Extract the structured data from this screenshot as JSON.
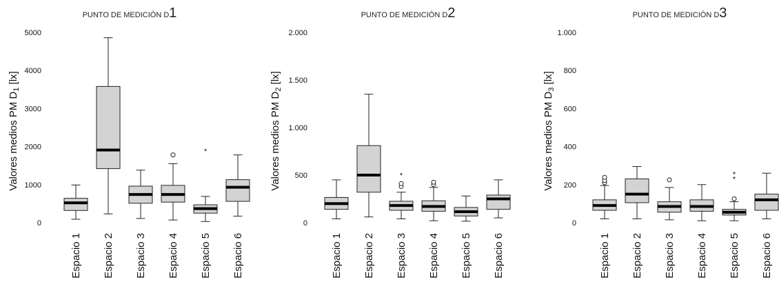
{
  "chart_data": [
    {
      "type": "boxplot",
      "title": "PUNTO DE MEDICIÓN D",
      "title_sub": "1",
      "ylabel": "Valores medios PM D",
      "ylabel_sub": "1",
      "ylabel_unit": " [lx]",
      "ylim": [
        0,
        5000
      ],
      "yticks": [
        0,
        1000,
        2000,
        3000,
        4000,
        5000
      ],
      "ytick_labels": [
        "0",
        "1000",
        "2000",
        "3000",
        "4000",
        "5000"
      ],
      "categories": [
        "Espacio 1",
        "Espacio 2",
        "Espacio 3",
        "Espacio 4",
        "Espacio 5",
        "Espacio 6"
      ],
      "boxes": [
        {
          "whisker_low": 90,
          "q1": 320,
          "median": 520,
          "q3": 640,
          "whisker_high": 990,
          "outliers": []
        },
        {
          "whisker_low": 230,
          "q1": 1420,
          "median": 1910,
          "q3": 3580,
          "whisker_high": 4860,
          "outliers": []
        },
        {
          "whisker_low": 110,
          "q1": 510,
          "median": 740,
          "q3": 960,
          "whisker_high": 1380,
          "outliers": []
        },
        {
          "whisker_low": 70,
          "q1": 540,
          "median": 740,
          "q3": 980,
          "whisker_high": 1550,
          "outliers": [
            {
              "value": 1780,
              "marker": "circle"
            }
          ]
        },
        {
          "whisker_low": 30,
          "q1": 250,
          "median": 370,
          "q3": 470,
          "whisker_high": 690,
          "outliers": [
            {
              "value": 1960,
              "marker": "star"
            }
          ]
        },
        {
          "whisker_low": 170,
          "q1": 560,
          "median": 930,
          "q3": 1130,
          "whisker_high": 1780,
          "outliers": []
        }
      ]
    },
    {
      "type": "boxplot",
      "title": "PUNTO DE MEDICIÓN D",
      "title_sub": "2",
      "ylabel": "Valores medios PM D",
      "ylabel_sub": "2",
      "ylabel_unit": " [lx]",
      "ylim": [
        0,
        2000
      ],
      "yticks": [
        0,
        500,
        1000,
        1500,
        2000
      ],
      "ytick_labels": [
        "0",
        "500",
        "1.000",
        "1.500",
        "2.000"
      ],
      "categories": [
        "Espacio 1",
        "Espacio 2",
        "Espacio 3",
        "Espacio 4",
        "Espacio 5",
        "Espacio 6"
      ],
      "boxes": [
        {
          "whisker_low": 40,
          "q1": 140,
          "median": 200,
          "q3": 265,
          "whisker_high": 450,
          "outliers": []
        },
        {
          "whisker_low": 60,
          "q1": 320,
          "median": 500,
          "q3": 810,
          "whisker_high": 1350,
          "outliers": []
        },
        {
          "whisker_low": 40,
          "q1": 130,
          "median": 180,
          "q3": 225,
          "whisker_high": 320,
          "outliers": [
            {
              "value": 380,
              "marker": "circle"
            },
            {
              "value": 410,
              "marker": "circle"
            },
            {
              "value": 530,
              "marker": "star"
            }
          ]
        },
        {
          "whisker_low": 20,
          "q1": 120,
          "median": 170,
          "q3": 230,
          "whisker_high": 370,
          "outliers": [
            {
              "value": 400,
              "marker": "circle"
            },
            {
              "value": 425,
              "marker": "circle"
            }
          ]
        },
        {
          "whisker_low": 15,
          "q1": 70,
          "median": 115,
          "q3": 160,
          "whisker_high": 280,
          "outliers": []
        },
        {
          "whisker_low": 50,
          "q1": 140,
          "median": 250,
          "q3": 290,
          "whisker_high": 450,
          "outliers": []
        }
      ]
    },
    {
      "type": "boxplot",
      "title": "PUNTO DE MEDICIÓN D",
      "title_sub": "3",
      "ylabel": "Valores medios PM D",
      "ylabel_sub": "3",
      "ylabel_unit": " [lx]",
      "ylim": [
        0,
        1000
      ],
      "yticks": [
        0,
        200,
        400,
        600,
        800,
        1000
      ],
      "ytick_labels": [
        "0",
        "200",
        "400",
        "600",
        "800",
        "1.000"
      ],
      "categories": [
        "Espacio 1",
        "Espacio 2",
        "Espacio 3",
        "Espacio 4",
        "Espacio 5",
        "Espacio 6"
      ],
      "boxes": [
        {
          "whisker_low": 20,
          "q1": 65,
          "median": 90,
          "q3": 120,
          "whisker_high": 195,
          "outliers": [
            {
              "value": 210,
              "marker": "circle"
            },
            {
              "value": 222,
              "marker": "circle"
            },
            {
              "value": 238,
              "marker": "circle"
            }
          ]
        },
        {
          "whisker_low": 20,
          "q1": 105,
          "median": 150,
          "q3": 230,
          "whisker_high": 295,
          "outliers": []
        },
        {
          "whisker_low": 15,
          "q1": 55,
          "median": 85,
          "q3": 110,
          "whisker_high": 185,
          "outliers": [
            {
              "value": 225,
              "marker": "circle"
            }
          ]
        },
        {
          "whisker_low": 10,
          "q1": 60,
          "median": 85,
          "q3": 120,
          "whisker_high": 200,
          "outliers": []
        },
        {
          "whisker_low": 10,
          "q1": 40,
          "median": 55,
          "q3": 70,
          "whisker_high": 110,
          "outliers": [
            {
              "value": 125,
              "marker": "circle"
            },
            {
              "value": 245,
              "marker": "star"
            },
            {
              "value": 270,
              "marker": "star"
            }
          ]
        },
        {
          "whisker_low": 20,
          "q1": 65,
          "median": 120,
          "q3": 150,
          "whisker_high": 260,
          "outliers": []
        }
      ]
    }
  ]
}
